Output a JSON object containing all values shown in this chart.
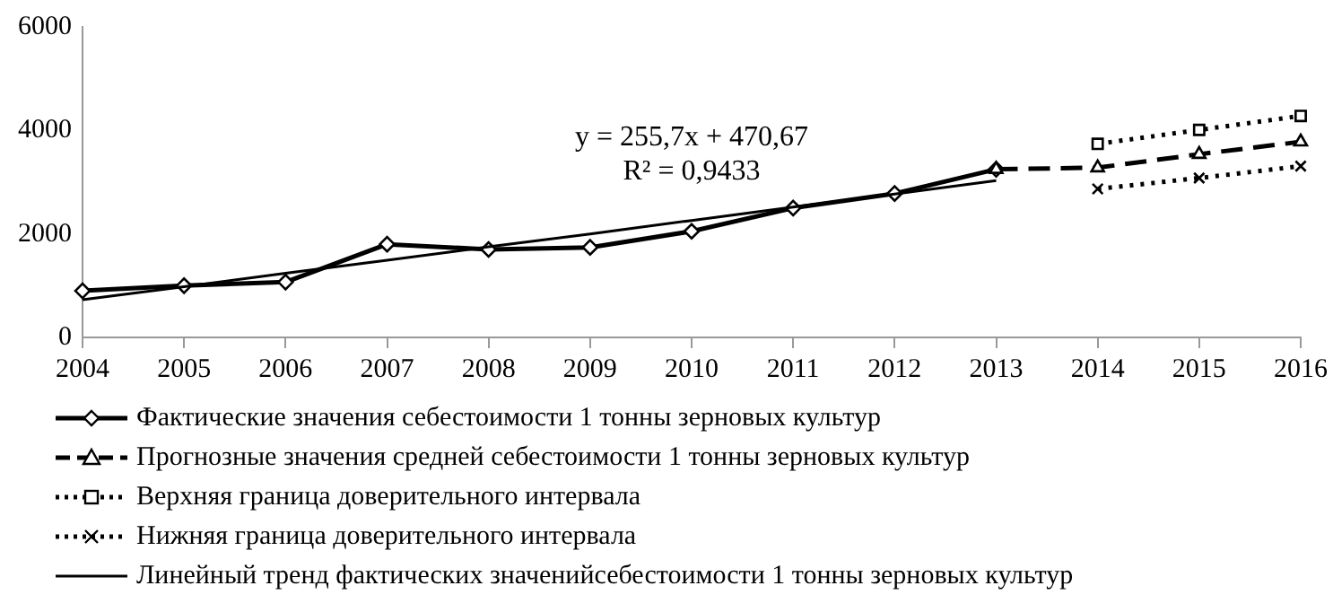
{
  "chart_data": {
    "type": "line",
    "categories": [
      "2004",
      "2005",
      "2006",
      "2007",
      "2008",
      "2009",
      "2010",
      "2011",
      "2012",
      "2013",
      "2014",
      "2015",
      "2016"
    ],
    "ylim": [
      0,
      6000
    ],
    "yticks": [
      0,
      2000,
      4000,
      6000
    ],
    "grid": false,
    "legend": "bottom",
    "annotations": [
      "y = 255,7x + 470,67",
      "R² = 0,9433"
    ],
    "series": [
      {
        "name": "Фактические значения себестоимости 1 тонны зерновых культур",
        "color": "#000000",
        "marker": "diamond",
        "line_style": "solid",
        "values": [
          900,
          1000,
          1070,
          1800,
          1700,
          1740,
          2050,
          2500,
          2780,
          3250,
          null,
          null,
          null
        ]
      },
      {
        "name": "Прогнозные значения средней себестоимости 1 тонны зерновых культур",
        "color": "#000000",
        "marker": "triangle",
        "line_style": "dashed",
        "values": [
          null,
          null,
          null,
          null,
          null,
          null,
          null,
          null,
          null,
          3250,
          3280,
          3540,
          3780
        ]
      },
      {
        "name": "Верхняя граница доверительного интервала",
        "color": "#000000",
        "marker": "square",
        "line_style": "dotted",
        "values": [
          null,
          null,
          null,
          null,
          null,
          null,
          null,
          null,
          null,
          null,
          3740,
          4010,
          4280
        ]
      },
      {
        "name": "Нижняя граница доверительного интервала",
        "color": "#000000",
        "marker": "cross",
        "line_style": "dotted",
        "values": [
          null,
          null,
          null,
          null,
          null,
          null,
          null,
          null,
          null,
          null,
          2870,
          3080,
          3310
        ]
      },
      {
        "name": "Линейный тренд фактических значенийсебестоимости 1 тонны зерновых культур",
        "type": "line",
        "color": "#000000",
        "marker": "none",
        "line_style": "solid",
        "values": [
          730,
          980,
          1240,
          1490,
          1750,
          2000,
          2260,
          2520,
          2770,
          3030,
          null,
          null,
          null
        ]
      }
    ]
  }
}
